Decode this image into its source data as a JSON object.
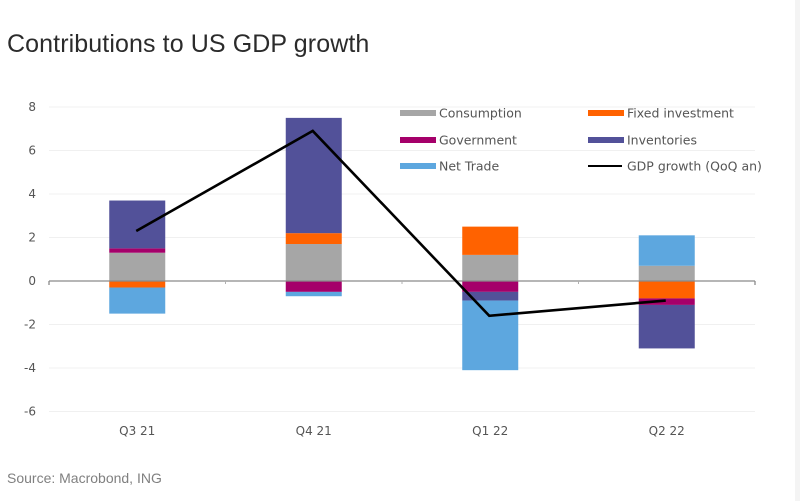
{
  "title": "Contributions to US GDP growth",
  "source": "Source: Macrobond, ING",
  "chart_data": {
    "type": "bar",
    "stacked": true,
    "title": "Contributions to US GDP growth",
    "xlabel": "",
    "ylabel": "",
    "ylim": [
      -6,
      8
    ],
    "yticks": [
      8,
      6,
      4,
      2,
      0,
      -2,
      -4,
      -6
    ],
    "grid": true,
    "legend_position": "top-right",
    "categories": [
      "Q3 21",
      "Q4 21",
      "Q1 22",
      "Q2 22"
    ],
    "series": [
      {
        "name": "Consumption",
        "kind": "bar",
        "color": "#A6A6A6",
        "values": [
          1.3,
          1.7,
          1.2,
          0.7
        ]
      },
      {
        "name": "Fixed investment",
        "kind": "bar",
        "color": "#FF6200",
        "values": [
          -0.3,
          0.5,
          1.3,
          -0.8
        ]
      },
      {
        "name": "Government",
        "kind": "bar",
        "color": "#A5006A",
        "values": [
          0.2,
          -0.5,
          -0.5,
          -0.3
        ]
      },
      {
        "name": "Inventories",
        "kind": "bar",
        "color": "#525199",
        "values": [
          2.2,
          5.3,
          -0.4,
          -2.0
        ]
      },
      {
        "name": "Net Trade",
        "kind": "bar",
        "color": "#5DA7DF",
        "values": [
          -1.2,
          -0.2,
          -3.2,
          1.4
        ]
      },
      {
        "name": "GDP growth (QoQ an)",
        "kind": "line",
        "color": "#000000",
        "values": [
          2.3,
          6.9,
          -1.6,
          -0.9
        ]
      }
    ],
    "legend": [
      {
        "label": "Consumption",
        "color": "#A6A6A6",
        "kind": "bar"
      },
      {
        "label": "Fixed investment",
        "color": "#FF6200",
        "kind": "bar"
      },
      {
        "label": "Government",
        "color": "#A5006A",
        "kind": "bar"
      },
      {
        "label": "Inventories",
        "color": "#525199",
        "kind": "bar"
      },
      {
        "label": "Net Trade",
        "color": "#5DA7DF",
        "kind": "bar"
      },
      {
        "label": "GDP growth (QoQ an)",
        "color": "#000000",
        "kind": "line"
      }
    ]
  }
}
